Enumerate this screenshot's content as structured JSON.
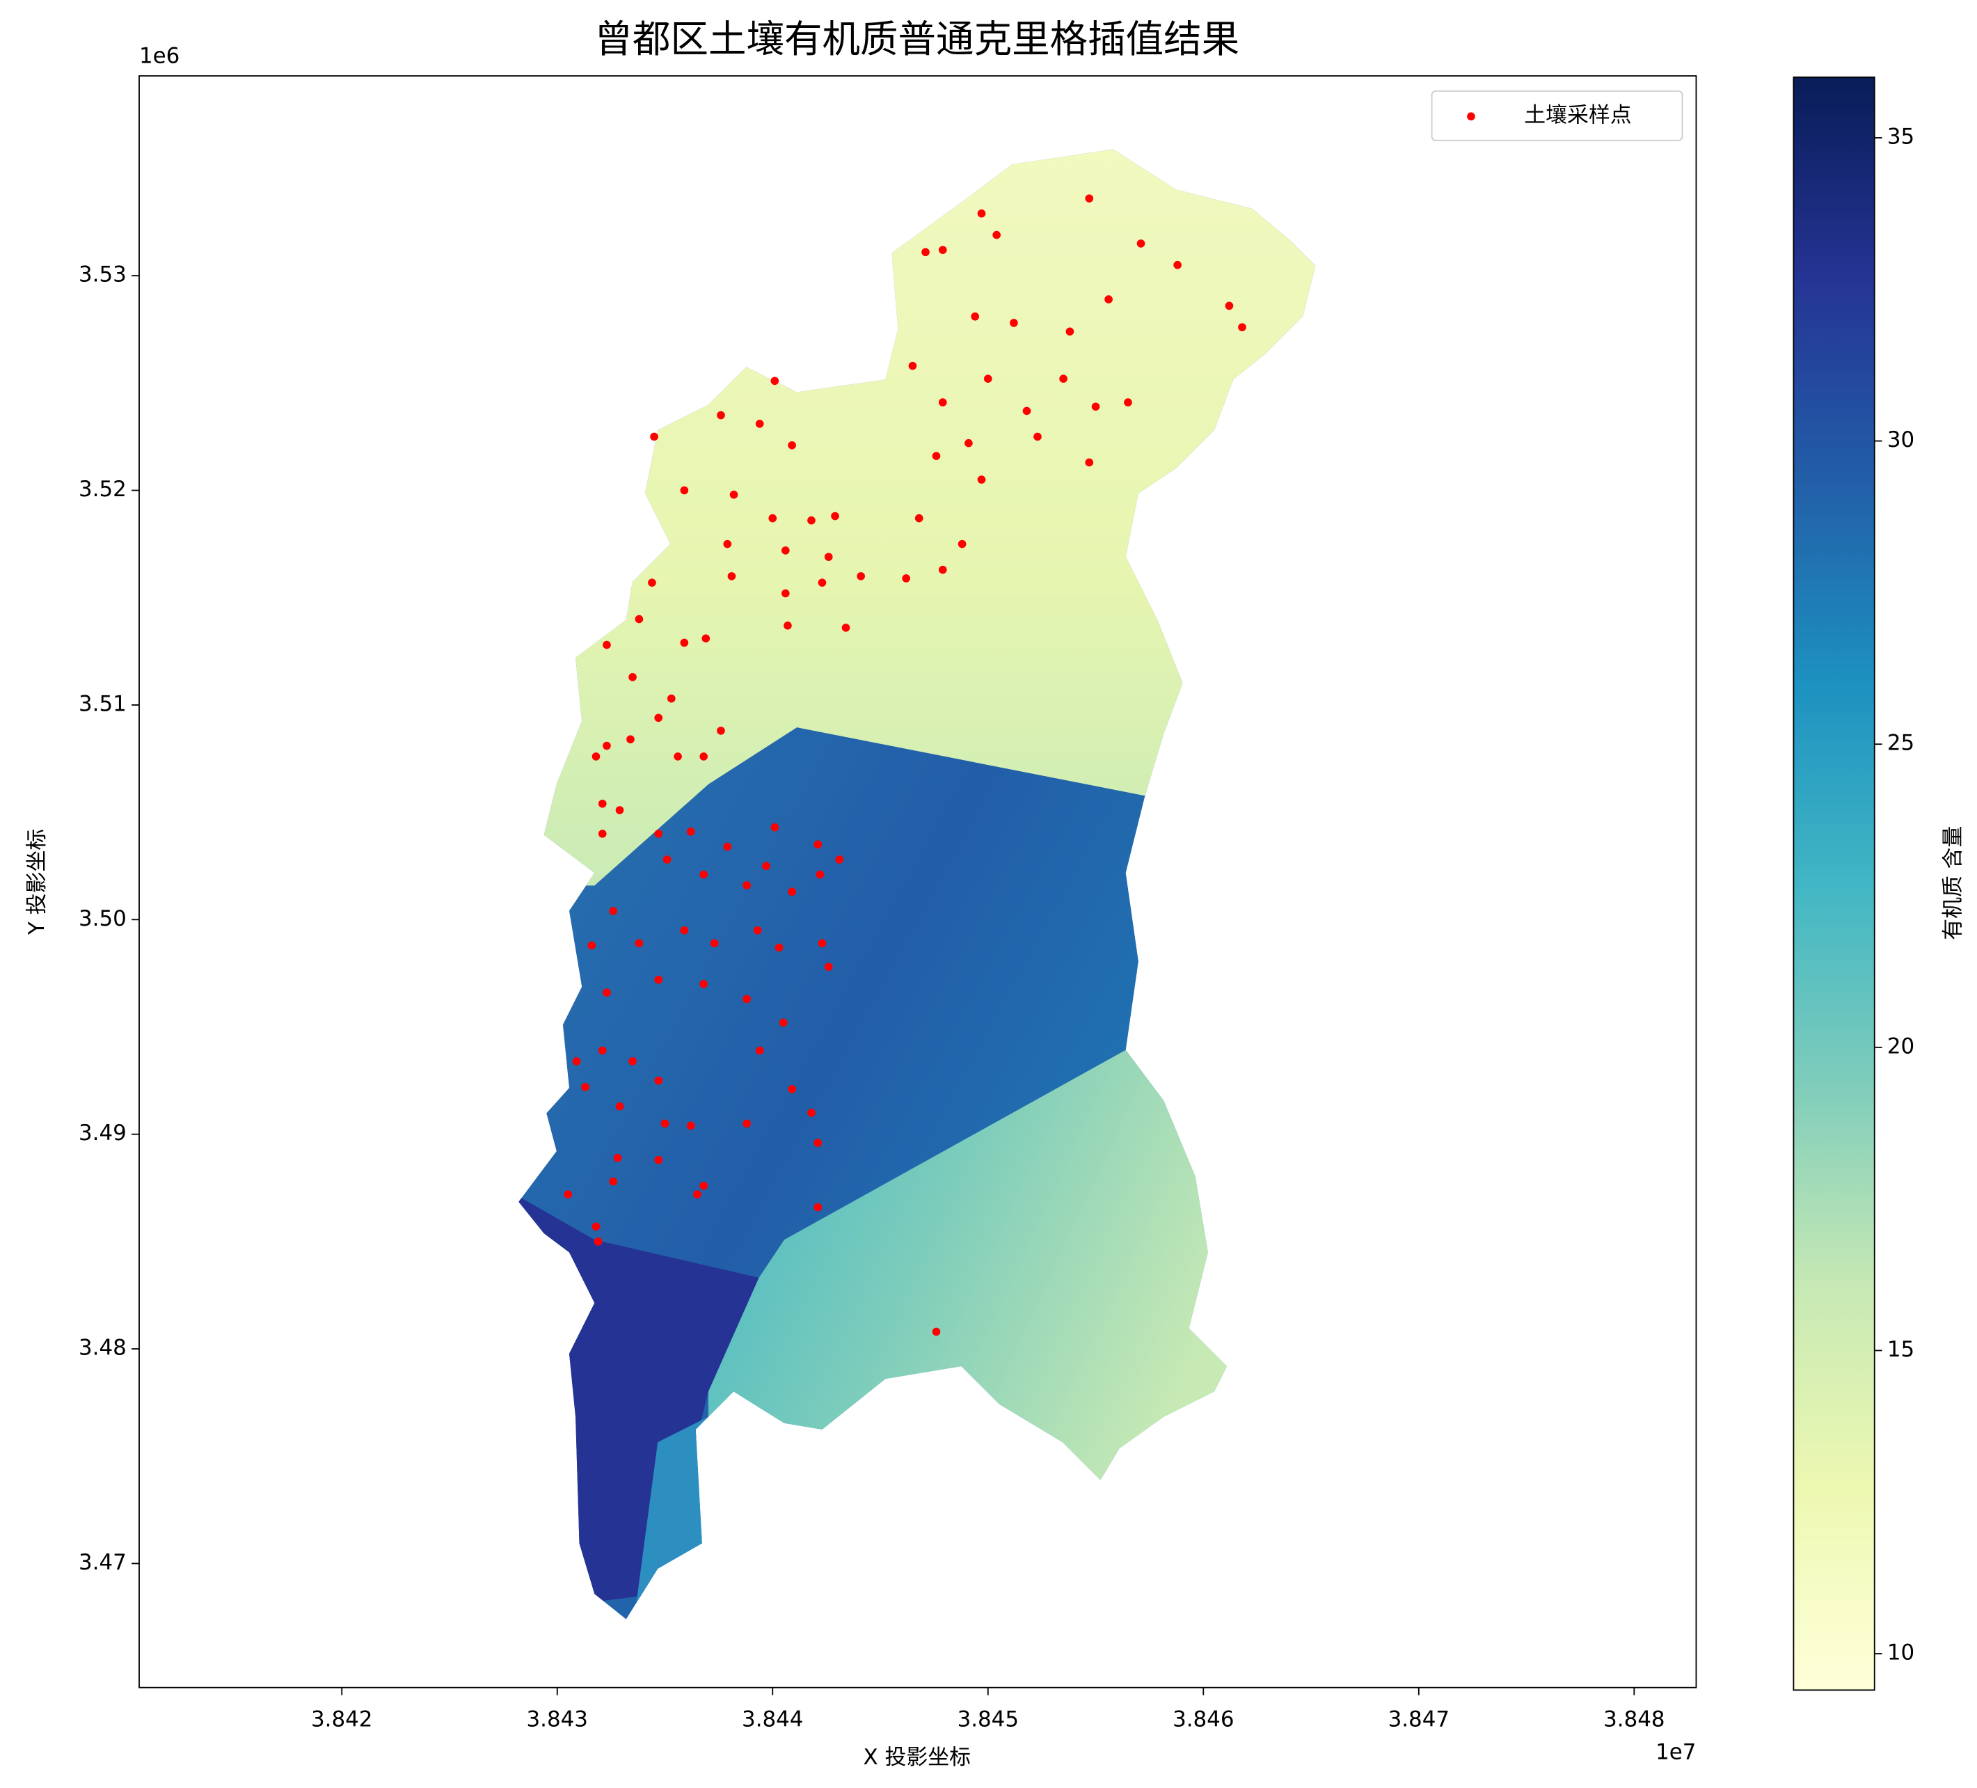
{
  "chart_data": {
    "type": "scatter",
    "title": "曾都区土壤有机质普通克里格插值结果",
    "xlabel": "X 投影坐标",
    "ylabel": "Y 投影坐标",
    "x_offset_label": "1e7",
    "y_offset_label": "1e6",
    "xlim": [
      38410590,
      38482880
    ],
    "ylim": [
      3464220,
      3539310
    ],
    "xticks": [
      {
        "value": 38420000,
        "label": "3.842"
      },
      {
        "value": 38430000,
        "label": "3.843"
      },
      {
        "value": 38440000,
        "label": "3.844"
      },
      {
        "value": 38450000,
        "label": "3.845"
      },
      {
        "value": 38460000,
        "label": "3.846"
      },
      {
        "value": 38470000,
        "label": "3.847"
      },
      {
        "value": 38480000,
        "label": "3.848"
      }
    ],
    "yticks": [
      {
        "value": 3470000,
        "label": "3.47"
      },
      {
        "value": 3480000,
        "label": "3.48"
      },
      {
        "value": 3490000,
        "label": "3.49"
      },
      {
        "value": 3500000,
        "label": "3.50"
      },
      {
        "value": 3510000,
        "label": "3.51"
      },
      {
        "value": 3520000,
        "label": "3.52"
      },
      {
        "value": 3530000,
        "label": "3.53"
      }
    ],
    "legend": "upper right",
    "series": [
      {
        "name": "土壤采样点",
        "color": "#ff0000",
        "x": [
          38454700,
          38449700,
          38450400,
          38447100,
          38447900,
          38457100,
          38458800,
          38461200,
          38461800,
          38455600,
          38453800,
          38451200,
          38449400,
          38446500,
          38447900,
          38450000,
          38451800,
          38453500,
          38455000,
          38456500,
          38449100,
          38447600,
          38449700,
          38452300,
          38454700,
          38446800,
          38448800,
          38447900,
          38446200,
          38440100,
          38437600,
          38439400,
          38434500,
          38440900,
          38435900,
          38438200,
          38440000,
          38441800,
          38442900,
          38437900,
          38440600,
          38442600,
          38438100,
          38440600,
          38442300,
          38444100,
          38440700,
          38443400,
          38434400,
          38433800,
          38432300,
          38433500,
          38435900,
          38436900,
          38435300,
          38431800,
          38432300,
          38433400,
          38434700,
          38435600,
          38436800,
          38437600,
          38432100,
          38432900,
          38432100,
          38434700,
          38436200,
          38435100,
          38436800,
          38437900,
          38440100,
          38442100,
          38443100,
          38439700,
          38438800,
          38440900,
          38442200,
          38432600,
          38433800,
          38435900,
          38437300,
          38439300,
          38440300,
          38442300,
          38442600,
          38431600,
          38432300,
          38434700,
          38436800,
          38438800,
          38440500,
          38439400,
          38430900,
          38432100,
          38433500,
          38434700,
          38431300,
          38432900,
          38435000,
          38436200,
          38438800,
          38440900,
          38441800,
          38442100,
          38432800,
          38434700,
          38432600,
          38430500,
          38436800,
          38436500,
          38431800,
          38431900,
          38442100,
          38447600
        ],
        "y": [
          3533600,
          3532900,
          3531900,
          3531100,
          3531200,
          3531500,
          3530500,
          3528600,
          3527600,
          3528900,
          3527400,
          3527800,
          3528100,
          3525800,
          3524100,
          3525200,
          3523700,
          3525200,
          3523900,
          3524100,
          3522200,
          3521600,
          3520500,
          3522500,
          3521300,
          3518700,
          3517500,
          3516300,
          3515900,
          3525100,
          3523500,
          3523100,
          3522500,
          3522100,
          3520000,
          3519800,
          3518700,
          3518600,
          3518800,
          3517500,
          3517200,
          3516900,
          3516000,
          3515200,
          3515700,
          3516000,
          3513700,
          3513600,
          3515700,
          3514000,
          3512800,
          3511300,
          3512900,
          3513100,
          3510300,
          3507600,
          3508100,
          3508400,
          3509400,
          3507600,
          3507600,
          3508800,
          3505400,
          3505100,
          3504000,
          3504000,
          3504100,
          3502800,
          3502100,
          3503400,
          3504300,
          3503500,
          3502800,
          3502500,
          3501600,
          3501300,
          3502100,
          3500400,
          3498900,
          3499500,
          3498900,
          3499500,
          3498700,
          3498900,
          3497800,
          3498800,
          3496600,
          3497200,
          3497000,
          3496300,
          3495200,
          3493900,
          3493400,
          3493900,
          3493400,
          3492500,
          3492200,
          3491300,
          3490500,
          3490400,
          3490500,
          3492100,
          3491000,
          3489600,
          3488900,
          3488800,
          3487800,
          3487200,
          3487600,
          3487200,
          3485700,
          3485000,
          3486600,
          3480800
        ]
      }
    ],
    "colorbar": {
      "label": "有机质 含量",
      "lim": [
        9.4,
        36.0
      ],
      "ticks": [
        10,
        15,
        20,
        25,
        30,
        35
      ]
    }
  }
}
